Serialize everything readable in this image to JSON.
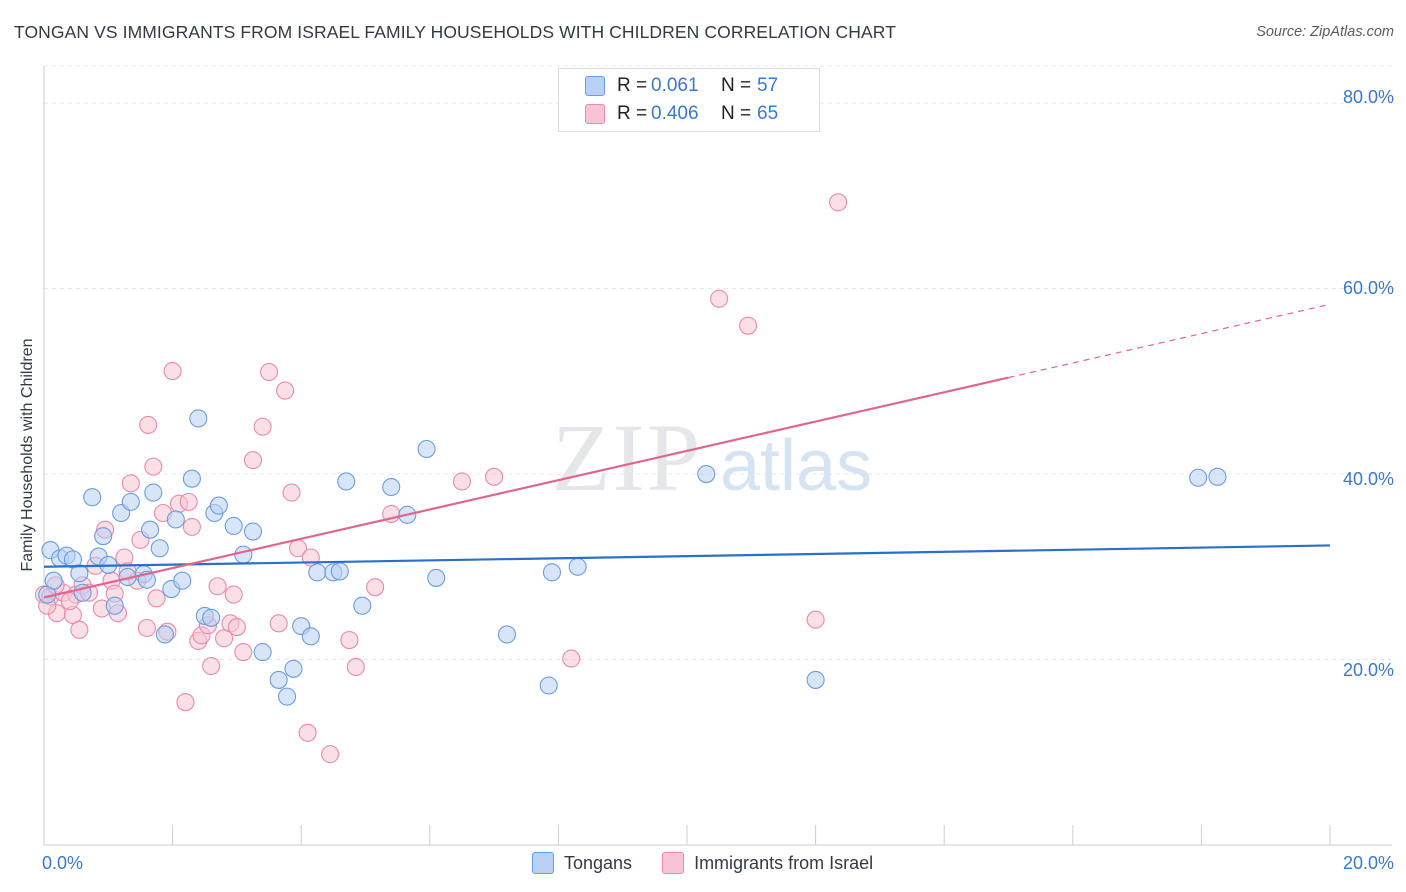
{
  "title": "TONGAN VS IMMIGRANTS FROM ISRAEL FAMILY HOUSEHOLDS WITH CHILDREN CORRELATION CHART",
  "source": "Source: ZipAtlas.com",
  "watermark": {
    "zip": "ZIP",
    "atlas": "atlas"
  },
  "legend": {
    "rows": [
      {
        "r_label": "R =",
        "r_value": "0.061",
        "n_label": "N =",
        "n_value": "57"
      },
      {
        "r_label": "R =",
        "r_value": "0.406",
        "n_label": "N =",
        "n_value": "65"
      }
    ]
  },
  "colors": {
    "blue_fill": "#b8d0f2",
    "blue_stroke": "#6a9de0",
    "blue_line": "#2a6fc9",
    "pink_fill": "#f6c4d4",
    "pink_stroke": "#e98aaa",
    "pink_line": "#e0668f",
    "grid": "#e3e7ec",
    "axis": "#c9ced6",
    "tick_text": "#3b78c9"
  },
  "chart_data": {
    "type": "scatter",
    "title": "TONGAN VS IMMIGRANTS FROM ISRAEL FAMILY HOUSEHOLDS WITH CHILDREN CORRELATION CHART",
    "xlabel": "",
    "ylabel": "Family Households with Children",
    "xlim": [
      0,
      20
    ],
    "ylim": [
      0,
      84
    ],
    "x_tick_labels": [
      "0.0%",
      "20.0%"
    ],
    "y_ticks": [
      20,
      40,
      60,
      80
    ],
    "y_tick_labels": [
      "20.0%",
      "40.0%",
      "60.0%",
      "80.0%"
    ],
    "legend_position": "top-center",
    "series": [
      {
        "name": "Tongans",
        "r": 0.061,
        "n": 57,
        "trend": {
          "x0": 0,
          "y0": 30.0,
          "x1": 20,
          "y1": 32.3,
          "dashed_from": null
        },
        "points": [
          [
            0.1,
            31.8
          ],
          [
            0.25,
            30.9
          ],
          [
            0.35,
            31.2
          ],
          [
            0.45,
            30.8
          ],
          [
            0.55,
            29.3
          ],
          [
            0.6,
            27.2
          ],
          [
            0.75,
            37.5
          ],
          [
            0.85,
            31.1
          ],
          [
            0.92,
            33.3
          ],
          [
            1.0,
            30.2
          ],
          [
            1.1,
            25.8
          ],
          [
            1.2,
            35.8
          ],
          [
            1.3,
            28.9
          ],
          [
            1.35,
            37.0
          ],
          [
            1.55,
            29.2
          ],
          [
            1.6,
            28.6
          ],
          [
            1.65,
            34.0
          ],
          [
            1.7,
            38.0
          ],
          [
            1.8,
            32.0
          ],
          [
            1.88,
            22.7
          ],
          [
            1.98,
            27.6
          ],
          [
            2.05,
            35.1
          ],
          [
            2.15,
            28.5
          ],
          [
            2.3,
            39.5
          ],
          [
            2.4,
            46.0
          ],
          [
            2.5,
            24.7
          ],
          [
            2.6,
            24.5
          ],
          [
            2.65,
            35.8
          ],
          [
            2.72,
            36.6
          ],
          [
            2.95,
            34.4
          ],
          [
            3.1,
            31.3
          ],
          [
            3.25,
            33.8
          ],
          [
            3.4,
            20.8
          ],
          [
            3.65,
            17.8
          ],
          [
            3.78,
            16.0
          ],
          [
            3.88,
            19.0
          ],
          [
            4.0,
            23.6
          ],
          [
            4.15,
            22.5
          ],
          [
            4.25,
            29.4
          ],
          [
            4.5,
            29.4
          ],
          [
            4.6,
            29.5
          ],
          [
            4.7,
            39.2
          ],
          [
            4.95,
            25.8
          ],
          [
            5.4,
            38.6
          ],
          [
            5.65,
            35.6
          ],
          [
            5.95,
            42.7
          ],
          [
            6.1,
            28.8
          ],
          [
            7.2,
            22.7
          ],
          [
            7.85,
            17.2
          ],
          [
            7.9,
            29.4
          ],
          [
            8.3,
            30.0
          ],
          [
            10.3,
            40.0
          ],
          [
            12.0,
            17.8
          ],
          [
            17.95,
            39.6
          ],
          [
            18.25,
            39.7
          ],
          [
            0.05,
            27.0
          ],
          [
            0.15,
            28.5
          ]
        ]
      },
      {
        "name": "Immigrants from Israel",
        "r": 0.406,
        "n": 65,
        "trend": {
          "x0": 0,
          "y0": 26.7,
          "x1": 20,
          "y1": 58.3,
          "dashed_from": 15
        },
        "points": [
          [
            0.0,
            27.0
          ],
          [
            0.1,
            26.8
          ],
          [
            0.2,
            25.0
          ],
          [
            0.3,
            27.2
          ],
          [
            0.45,
            24.8
          ],
          [
            0.5,
            27.0
          ],
          [
            0.55,
            23.2
          ],
          [
            0.6,
            28.0
          ],
          [
            0.7,
            27.2
          ],
          [
            0.8,
            30.1
          ],
          [
            0.9,
            25.5
          ],
          [
            0.95,
            34.0
          ],
          [
            1.05,
            28.5
          ],
          [
            1.1,
            27.1
          ],
          [
            1.15,
            25.0
          ],
          [
            1.25,
            31.0
          ],
          [
            1.3,
            29.5
          ],
          [
            1.35,
            39.0
          ],
          [
            1.45,
            28.5
          ],
          [
            1.5,
            32.9
          ],
          [
            1.6,
            23.4
          ],
          [
            1.62,
            45.3
          ],
          [
            1.7,
            40.8
          ],
          [
            1.75,
            26.6
          ],
          [
            1.85,
            35.8
          ],
          [
            1.92,
            23.0
          ],
          [
            2.0,
            51.1
          ],
          [
            2.1,
            36.8
          ],
          [
            2.2,
            15.4
          ],
          [
            2.25,
            37.0
          ],
          [
            2.3,
            34.3
          ],
          [
            2.4,
            22.0
          ],
          [
            2.45,
            22.6
          ],
          [
            2.55,
            23.7
          ],
          [
            2.6,
            19.3
          ],
          [
            2.7,
            27.9
          ],
          [
            2.8,
            22.3
          ],
          [
            2.9,
            23.9
          ],
          [
            2.95,
            27.0
          ],
          [
            3.0,
            23.5
          ],
          [
            3.1,
            20.8
          ],
          [
            3.25,
            41.5
          ],
          [
            3.4,
            45.1
          ],
          [
            3.5,
            51.0
          ],
          [
            3.65,
            23.9
          ],
          [
            3.75,
            49.0
          ],
          [
            3.85,
            38.0
          ],
          [
            3.95,
            32.0
          ],
          [
            4.1,
            12.1
          ],
          [
            4.15,
            31.0
          ],
          [
            4.45,
            9.8
          ],
          [
            4.75,
            22.1
          ],
          [
            4.85,
            19.2
          ],
          [
            5.15,
            27.8
          ],
          [
            5.4,
            35.7
          ],
          [
            6.5,
            39.2
          ],
          [
            7.0,
            39.7
          ],
          [
            8.2,
            20.1
          ],
          [
            10.5,
            58.9
          ],
          [
            10.95,
            56.0
          ],
          [
            12.0,
            24.3
          ],
          [
            12.35,
            69.3
          ],
          [
            0.05,
            25.8
          ],
          [
            0.18,
            28.0
          ],
          [
            0.4,
            26.3
          ]
        ]
      }
    ]
  },
  "bottom_legend": {
    "items": [
      "Tongans",
      "Immigrants from Israel"
    ]
  }
}
